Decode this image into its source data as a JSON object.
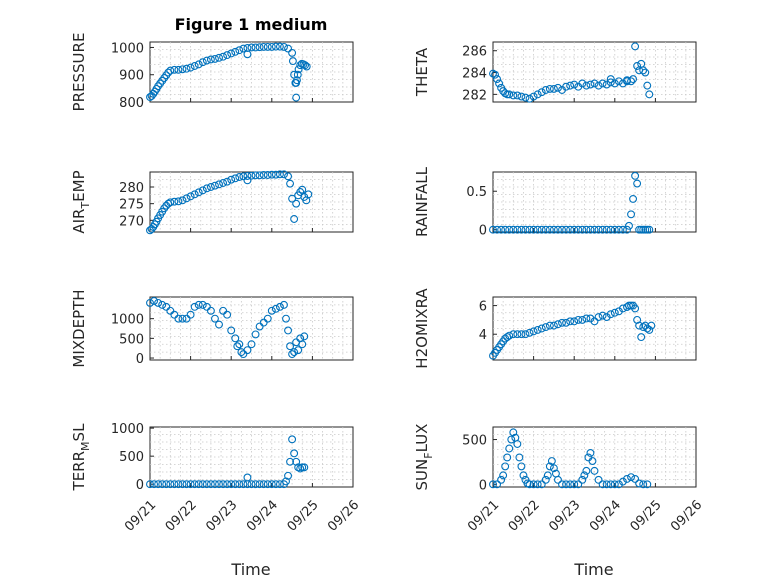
{
  "figure": {
    "title": "Figure 1 medium",
    "xlabel": "Time"
  },
  "colors": {
    "marker": "#0072BD",
    "axis": "#262626",
    "grid": "#c9c9c9"
  },
  "chart_data": [
    {
      "id": "pressure",
      "type": "scatter",
      "ylabel": "PRESSURE",
      "xticks": [],
      "yticks": [
        "800",
        "900",
        "1000"
      ],
      "ylim": [
        800,
        1020
      ],
      "xlim": [
        0,
        5
      ],
      "x": [
        0,
        0.04,
        0.08,
        0.12,
        0.16,
        0.2,
        0.25,
        0.3,
        0.35,
        0.4,
        0.45,
        0.5,
        0.6,
        0.7,
        0.8,
        0.9,
        1.0,
        1.1,
        1.2,
        1.3,
        1.4,
        1.5,
        1.6,
        1.7,
        1.8,
        1.9,
        2.0,
        2.1,
        2.2,
        2.3,
        2.4,
        2.5,
        2.6,
        2.7,
        2.8,
        2.9,
        3.0,
        3.1,
        3.2,
        3.3,
        3.4,
        3.5,
        3.52,
        3.55,
        3.58,
        3.6,
        3.62,
        3.64,
        3.66,
        3.7,
        3.74,
        3.78,
        3.82,
        3.86,
        2.4,
        3.6
      ],
      "y": [
        818,
        822,
        830,
        838,
        848,
        858,
        868,
        878,
        888,
        898,
        908,
        915,
        918,
        918,
        920,
        922,
        926,
        932,
        938,
        946,
        952,
        956,
        958,
        962,
        966,
        972,
        978,
        984,
        990,
        996,
        998,
        1000,
        1000,
        1001,
        1002,
        1002,
        1002,
        1003,
        1003,
        1002,
        996,
        980,
        950,
        900,
        870,
        816,
        880,
        900,
        920,
        935,
        940,
        938,
        935,
        930,
        975,
        870
      ]
    },
    {
      "id": "theta",
      "type": "scatter",
      "ylabel": "THETA",
      "xticks": [],
      "yticks": [
        "282",
        "284",
        "286"
      ],
      "ylim": [
        281.3,
        286.8
      ],
      "xlim": [
        0,
        5
      ],
      "x": [
        0,
        0.05,
        0.1,
        0.15,
        0.2,
        0.25,
        0.3,
        0.35,
        0.4,
        0.5,
        0.6,
        0.7,
        0.8,
        0.9,
        1.0,
        1.1,
        1.2,
        1.3,
        1.4,
        1.5,
        1.6,
        1.7,
        1.8,
        1.9,
        2.0,
        2.1,
        2.2,
        2.3,
        2.4,
        2.5,
        2.6,
        2.7,
        2.8,
        2.9,
        3.0,
        3.1,
        3.2,
        3.3,
        3.4,
        3.45,
        3.5,
        3.55,
        3.6,
        3.65,
        3.7,
        3.75,
        3.8,
        3.85,
        2.9,
        3.3
      ],
      "y": [
        283.9,
        283.8,
        283.4,
        283.0,
        282.6,
        282.3,
        282.1,
        282.0,
        282.0,
        281.9,
        281.9,
        281.8,
        281.7,
        281.6,
        281.8,
        282.0,
        282.2,
        282.4,
        282.5,
        282.5,
        282.6,
        282.4,
        282.7,
        282.8,
        282.9,
        282.7,
        283.0,
        282.8,
        282.9,
        283.0,
        282.8,
        283.0,
        282.9,
        283.1,
        283.0,
        283.2,
        283.0,
        283.3,
        283.2,
        283.4,
        286.4,
        284.6,
        284.2,
        284.8,
        284.2,
        284.0,
        282.8,
        282.0,
        283.4,
        283.2
      ]
    },
    {
      "id": "airtemp",
      "type": "scatter",
      "ylabel": "AIR",
      "ylabel_sub": "T",
      "ylabel_rest": "EMP",
      "xticks": [],
      "yticks": [
        "270",
        "275",
        "280"
      ],
      "ylim": [
        266.5,
        284.5
      ],
      "xlim": [
        0,
        5
      ],
      "x": [
        0,
        0.04,
        0.08,
        0.12,
        0.16,
        0.2,
        0.25,
        0.3,
        0.35,
        0.4,
        0.45,
        0.5,
        0.6,
        0.7,
        0.8,
        0.9,
        1.0,
        1.1,
        1.2,
        1.3,
        1.4,
        1.5,
        1.6,
        1.7,
        1.8,
        1.9,
        2.0,
        2.1,
        2.2,
        2.3,
        2.4,
        2.5,
        2.6,
        2.7,
        2.8,
        2.9,
        3.0,
        3.1,
        3.2,
        3.3,
        3.4,
        3.45,
        3.5,
        3.55,
        3.6,
        3.65,
        3.7,
        3.75,
        3.8,
        3.85,
        3.9,
        2.4
      ],
      "y": [
        267.0,
        267.4,
        268.0,
        268.8,
        269.6,
        270.6,
        271.6,
        272.6,
        273.6,
        274.4,
        275.0,
        275.4,
        275.6,
        275.7,
        276.0,
        276.6,
        277.2,
        277.8,
        278.4,
        279.0,
        279.6,
        280.0,
        280.4,
        280.8,
        281.2,
        281.6,
        282.2,
        282.6,
        283.0,
        283.2,
        283.3,
        283.4,
        283.5,
        283.5,
        283.6,
        283.6,
        283.7,
        283.7,
        283.8,
        283.8,
        283.2,
        281.0,
        276.5,
        270.4,
        275.0,
        277.5,
        278.5,
        279.2,
        277.0,
        276.0,
        277.8,
        282.0
      ]
    },
    {
      "id": "rainfall",
      "type": "scatter",
      "ylabel": "RAINFALL",
      "xticks": [],
      "yticks": [
        "0",
        "0.5"
      ],
      "ylim": [
        -0.03,
        0.75
      ],
      "xlim": [
        0,
        5
      ],
      "x": [
        0,
        0.1,
        0.2,
        0.3,
        0.4,
        0.5,
        0.6,
        0.7,
        0.8,
        0.9,
        1.0,
        1.1,
        1.2,
        1.3,
        1.4,
        1.5,
        1.6,
        1.7,
        1.8,
        1.9,
        2.0,
        2.1,
        2.2,
        2.3,
        2.4,
        2.5,
        2.6,
        2.7,
        2.8,
        2.9,
        3.0,
        3.1,
        3.2,
        3.3,
        3.35,
        3.4,
        3.45,
        3.5,
        3.55,
        3.6,
        3.65,
        3.7,
        3.75,
        3.8,
        3.85
      ],
      "y": [
        0,
        0,
        0,
        0,
        0,
        0,
        0,
        0,
        0,
        0,
        0,
        0,
        0,
        0,
        0,
        0,
        0,
        0,
        0,
        0,
        0,
        0,
        0,
        0,
        0,
        0,
        0,
        0,
        0,
        0,
        0,
        0,
        0,
        0,
        0.05,
        0.2,
        0.4,
        0.7,
        0.6,
        0,
        0,
        0,
        0,
        0,
        0
      ]
    },
    {
      "id": "mixdepth",
      "type": "scatter",
      "ylabel": "MIXDEPTH",
      "xticks": [],
      "yticks": [
        "0",
        "500",
        "1000"
      ],
      "ylim": [
        -50,
        1550
      ],
      "xlim": [
        0,
        5
      ],
      "x": [
        0,
        0.1,
        0.2,
        0.3,
        0.4,
        0.5,
        0.6,
        0.7,
        0.8,
        0.9,
        1.0,
        1.1,
        1.2,
        1.3,
        1.4,
        1.5,
        1.6,
        1.7,
        1.8,
        1.9,
        2.0,
        2.1,
        2.15,
        2.2,
        2.25,
        2.3,
        2.4,
        2.5,
        2.6,
        2.7,
        2.8,
        2.9,
        3.0,
        3.1,
        3.2,
        3.3,
        3.35,
        3.4,
        3.45,
        3.5,
        3.55,
        3.6,
        3.65,
        3.7,
        3.75,
        3.8
      ],
      "y": [
        1400,
        1450,
        1400,
        1350,
        1300,
        1200,
        1100,
        1000,
        1000,
        1000,
        1100,
        1300,
        1350,
        1350,
        1300,
        1200,
        1000,
        850,
        1200,
        1100,
        700,
        500,
        300,
        350,
        150,
        100,
        200,
        350,
        600,
        800,
        900,
        1000,
        1200,
        1250,
        1300,
        1350,
        1000,
        700,
        300,
        100,
        150,
        400,
        200,
        500,
        350,
        550
      ]
    },
    {
      "id": "h2omixra",
      "type": "scatter",
      "ylabel": "H2OMIXRA",
      "xticks": [],
      "yticks": [
        "4",
        "6"
      ],
      "ylim": [
        2.2,
        6.6
      ],
      "xlim": [
        0,
        5
      ],
      "x": [
        0,
        0.05,
        0.1,
        0.15,
        0.2,
        0.25,
        0.3,
        0.35,
        0.4,
        0.5,
        0.6,
        0.7,
        0.8,
        0.9,
        1.0,
        1.1,
        1.2,
        1.3,
        1.4,
        1.5,
        1.6,
        1.7,
        1.8,
        1.9,
        2.0,
        2.1,
        2.2,
        2.3,
        2.4,
        2.5,
        2.6,
        2.7,
        2.8,
        2.9,
        3.0,
        3.1,
        3.2,
        3.3,
        3.35,
        3.4,
        3.45,
        3.5,
        3.55,
        3.6,
        3.65,
        3.7,
        3.75,
        3.8,
        3.85,
        3.9
      ],
      "y": [
        2.5,
        2.7,
        2.9,
        3.1,
        3.3,
        3.5,
        3.7,
        3.8,
        3.9,
        4.0,
        4.0,
        4.0,
        4.0,
        4.1,
        4.2,
        4.3,
        4.4,
        4.5,
        4.6,
        4.6,
        4.7,
        4.8,
        4.8,
        4.9,
        4.9,
        5.0,
        5.0,
        5.1,
        5.1,
        4.9,
        5.2,
        5.3,
        5.2,
        5.4,
        5.5,
        5.6,
        5.8,
        5.9,
        6.0,
        6.0,
        6.0,
        5.8,
        5.0,
        4.6,
        3.8,
        4.5,
        4.6,
        4.4,
        4.3,
        4.6
      ]
    },
    {
      "id": "terrmsl",
      "type": "scatter",
      "ylabel": "TERR",
      "ylabel_sub": "M",
      "ylabel_rest": "SL",
      "xticks": [
        "09/21",
        "09/22",
        "09/23",
        "09/24",
        "09/25",
        "09/26"
      ],
      "yticks": [
        "0",
        "500",
        "1000"
      ],
      "ylim": [
        -50,
        1020
      ],
      "xlim": [
        0,
        5
      ],
      "x": [
        0,
        0.1,
        0.2,
        0.3,
        0.4,
        0.5,
        0.6,
        0.7,
        0.8,
        0.9,
        1.0,
        1.1,
        1.2,
        1.3,
        1.4,
        1.5,
        1.6,
        1.7,
        1.8,
        1.9,
        2.0,
        2.1,
        2.2,
        2.3,
        2.4,
        2.5,
        2.6,
        2.7,
        2.8,
        2.9,
        3.0,
        3.1,
        3.2,
        3.3,
        3.35,
        3.4,
        3.45,
        3.5,
        3.55,
        3.6,
        3.65,
        3.7,
        3.75,
        3.8,
        2.4
      ],
      "y": [
        0,
        0,
        0,
        0,
        0,
        0,
        0,
        0,
        0,
        0,
        0,
        0,
        0,
        0,
        0,
        0,
        0,
        0,
        0,
        0,
        0,
        0,
        0,
        0,
        0,
        0,
        0,
        0,
        0,
        0,
        0,
        0,
        0,
        0,
        50,
        150,
        400,
        800,
        550,
        400,
        300,
        280,
        300,
        300,
        120
      ]
    },
    {
      "id": "sunflux",
      "type": "scatter",
      "ylabel": "SUN",
      "ylabel_sub": "F",
      "ylabel_rest": "LUX",
      "xticks": [
        "09/21",
        "09/22",
        "09/23",
        "09/24",
        "09/25",
        "09/26"
      ],
      "yticks": [
        "0",
        "500"
      ],
      "ylim": [
        -30,
        640
      ],
      "xlim": [
        0,
        5
      ],
      "x": [
        0,
        0.1,
        0.2,
        0.25,
        0.3,
        0.35,
        0.4,
        0.45,
        0.5,
        0.55,
        0.6,
        0.65,
        0.7,
        0.75,
        0.8,
        0.85,
        0.9,
        1.0,
        1.1,
        1.2,
        1.3,
        1.35,
        1.4,
        1.45,
        1.5,
        1.55,
        1.6,
        1.7,
        1.8,
        1.9,
        2.0,
        2.1,
        2.2,
        2.25,
        2.3,
        2.35,
        2.4,
        2.45,
        2.5,
        2.6,
        2.7,
        2.8,
        2.9,
        3.0,
        3.1,
        3.2,
        3.3,
        3.4,
        3.5,
        3.6,
        3.7,
        3.8
      ],
      "y": [
        0,
        0,
        50,
        100,
        200,
        300,
        400,
        500,
        580,
        520,
        450,
        300,
        200,
        100,
        50,
        10,
        0,
        0,
        0,
        0,
        50,
        100,
        200,
        260,
        180,
        120,
        50,
        0,
        0,
        0,
        0,
        0,
        50,
        100,
        150,
        300,
        350,
        260,
        150,
        50,
        0,
        0,
        0,
        0,
        0,
        30,
        60,
        80,
        60,
        10,
        0,
        0
      ]
    }
  ]
}
